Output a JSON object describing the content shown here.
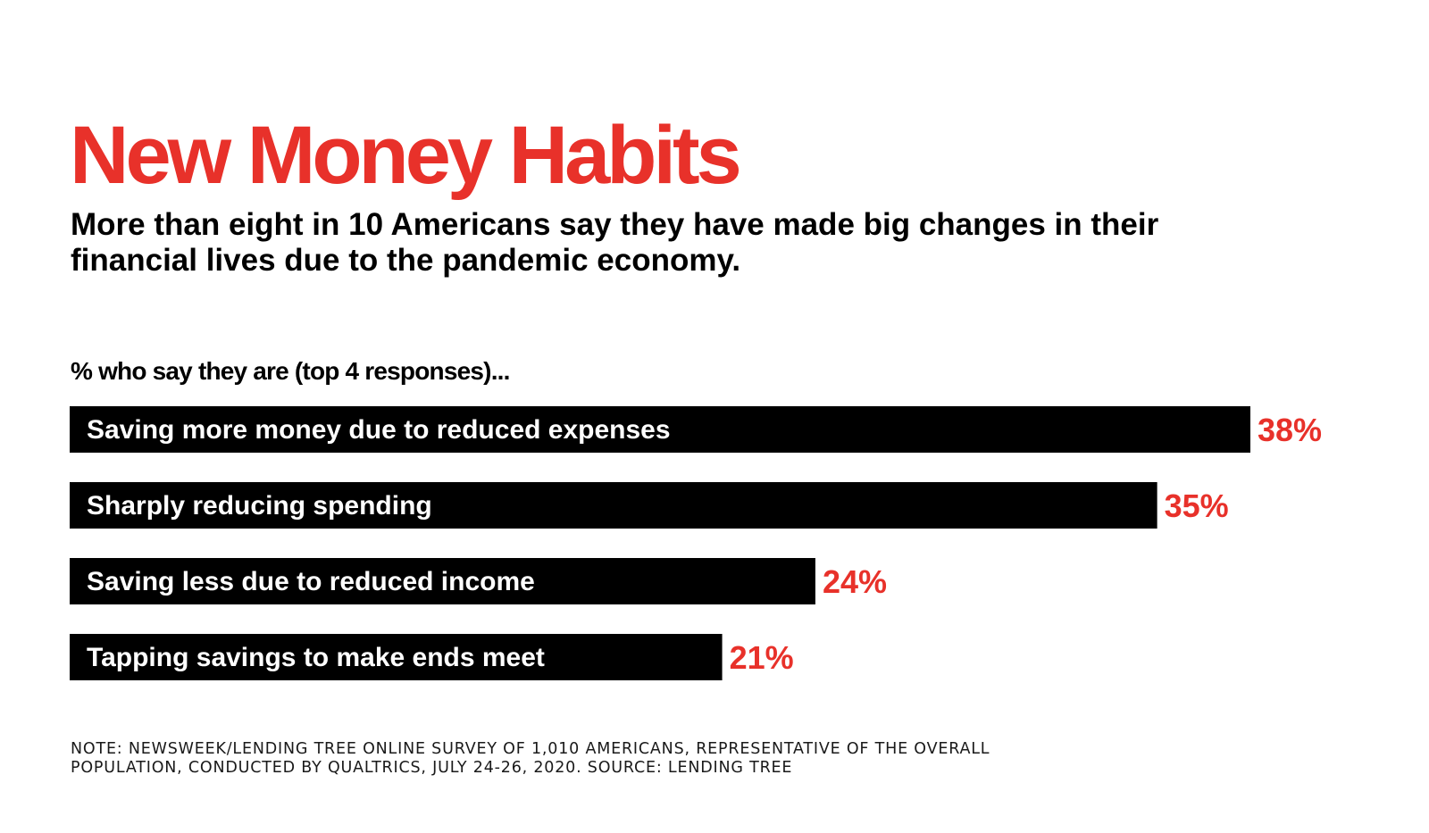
{
  "title": "New Money Habits",
  "subtitle": "More than eight in 10 Americans say they have made big changes in their financial lives due to the pandemic economy.",
  "chart_data": {
    "type": "bar",
    "orientation": "horizontal",
    "label": "% who say they are (top 4 responses)...",
    "categories": [
      "Saving more money due to reduced expenses",
      "Sharply reducing spending",
      "Saving less due to reduced income",
      "Tapping savings to make ends meet"
    ],
    "values": [
      38,
      35,
      24,
      21
    ],
    "value_labels": [
      "38%",
      "35%",
      "24%",
      "21%"
    ],
    "value_unit": "%",
    "grid": false,
    "legend": "none"
  },
  "note": "NOTE: NEWSWEEK/LENDING TREE ONLINE SURVEY OF 1,010 AMERICANS, REPRESENTATIVE OF THE OVERALL POPULATION, CONDUCTED BY QUALTRICS, JULY 24-26, 2020. SOURCE: LENDING TREE",
  "colors": {
    "accent": "#e8312a",
    "bar": "#000000",
    "bar_text": "#ffffff",
    "text": "#000000"
  }
}
